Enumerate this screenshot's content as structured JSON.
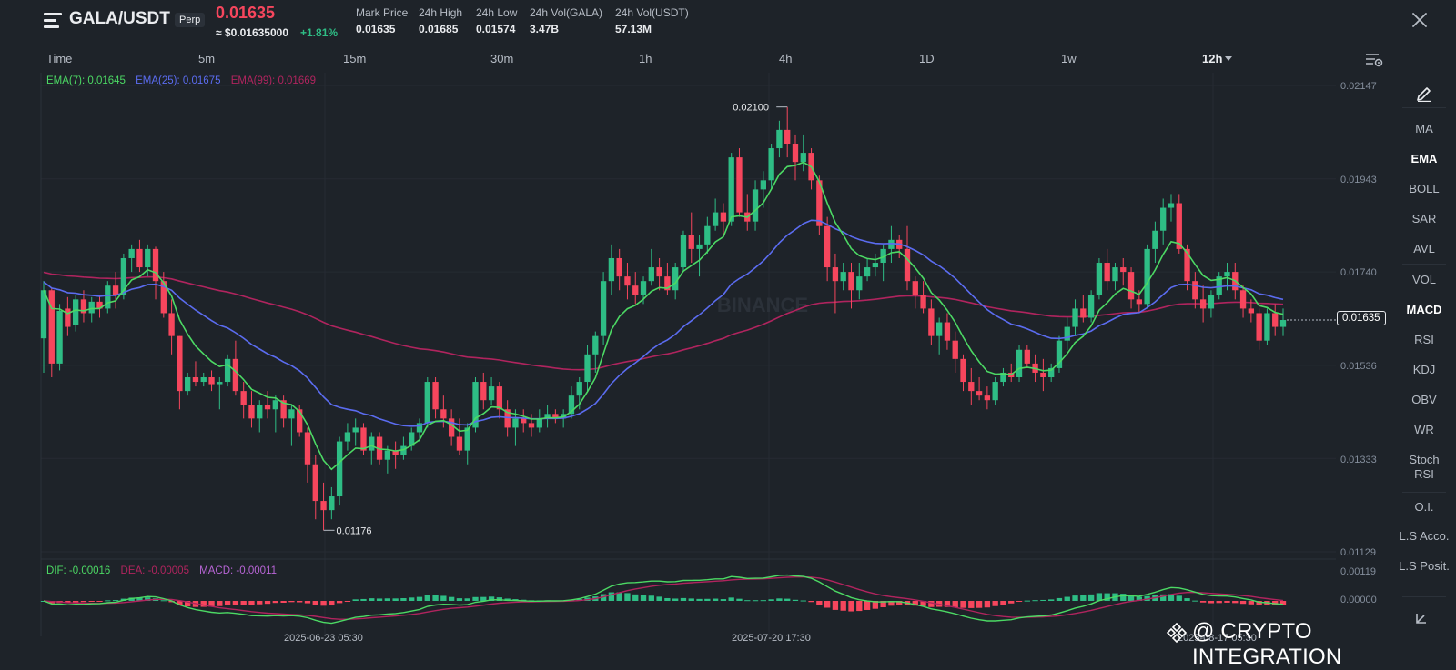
{
  "header": {
    "symbol": "GALA/USDT",
    "contract_type": "Perp",
    "last_price": "0.01635",
    "usd_price": "≈ $0.01635000",
    "change_pct": "+1.81%",
    "stats": [
      {
        "label": "Mark Price",
        "value": "0.01635"
      },
      {
        "label": "24h High",
        "value": "0.01685"
      },
      {
        "label": "24h Low",
        "value": "0.01574"
      },
      {
        "label": "24h Vol(GALA)",
        "value": "3.47B"
      },
      {
        "label": "24h Vol(USDT)",
        "value": "57.13M"
      }
    ]
  },
  "timeframes": [
    "Time",
    "5m",
    "15m",
    "30m",
    "1h",
    "4h",
    "1D",
    "1w",
    "12h"
  ],
  "active_timeframe": "12h",
  "indicators": [
    "MA",
    "EMA",
    "BOLL",
    "SAR",
    "AVL",
    "VOL",
    "MACD",
    "RSI",
    "KDJ",
    "OBV",
    "WR",
    "Stoch",
    "RSI",
    "O.I.",
    "L.S Acco.",
    "L.S Posit."
  ],
  "active_indicators": [
    "EMA",
    "MACD"
  ],
  "ema_legend": {
    "ema7": "EMA(7): 0.01645",
    "ema25": "EMA(25): 0.01675",
    "ema99": "EMA(99): 0.01669"
  },
  "macd_legend": {
    "dif": "DIF: -0.00016",
    "dea": "DEA: -0.00005",
    "macd": "MACD: -0.00011"
  },
  "chart_watermark": "BINANCE",
  "price_axis": [
    "0.02147",
    "0.01943",
    "0.01740",
    "0.01536",
    "0.01333",
    "0.01129"
  ],
  "macd_axis": [
    "0.00119",
    "0.00000"
  ],
  "date_labels": [
    "2025-06-23 05:30",
    "2025-07-20 17:30",
    "2025-08-17 05:30"
  ],
  "current_price_tag": "0.01635",
  "high_marker": "0.02100",
  "low_marker": "0.01176",
  "overlay_watermark": "@ CRYPTO INTEGRATION",
  "colors": {
    "background": "#1e2329",
    "up": "#2ebd85",
    "down": "#f6465d",
    "ema7": "#4cd964",
    "ema25": "#5b6cf0",
    "ema99": "#b0245e",
    "macd_label": "#b865d6"
  },
  "chart_data": {
    "type": "candlestick",
    "interval": "12h",
    "y_axis_ticks": [
      0.02147,
      0.01943,
      0.0174,
      0.01536,
      0.01333,
      0.01129
    ],
    "ylim": [
      0.0109,
      0.0221
    ],
    "x_tick_labels": [
      "2025-06-23 05:30",
      "2025-07-20 17:30",
      "2025-08-17 05:30"
    ],
    "high_marker": 0.021,
    "low_marker": 0.01176,
    "current_price": 0.01635,
    "candles": [
      {
        "o": 0.01595,
        "h": 0.0172,
        "l": 0.0152,
        "c": 0.017
      },
      {
        "o": 0.017,
        "h": 0.01705,
        "l": 0.0151,
        "c": 0.0154
      },
      {
        "o": 0.0154,
        "h": 0.0167,
        "l": 0.01525,
        "c": 0.01655
      },
      {
        "o": 0.0166,
        "h": 0.01685,
        "l": 0.016,
        "c": 0.0162
      },
      {
        "o": 0.01625,
        "h": 0.0169,
        "l": 0.0161,
        "c": 0.0168
      },
      {
        "o": 0.0168,
        "h": 0.017,
        "l": 0.0163,
        "c": 0.0165
      },
      {
        "o": 0.0165,
        "h": 0.01685,
        "l": 0.0163,
        "c": 0.01675
      },
      {
        "o": 0.01675,
        "h": 0.0169,
        "l": 0.0164,
        "c": 0.0166
      },
      {
        "o": 0.0166,
        "h": 0.0172,
        "l": 0.0165,
        "c": 0.0171
      },
      {
        "o": 0.0171,
        "h": 0.0174,
        "l": 0.0166,
        "c": 0.0169
      },
      {
        "o": 0.0169,
        "h": 0.0178,
        "l": 0.0168,
        "c": 0.0177
      },
      {
        "o": 0.0177,
        "h": 0.018,
        "l": 0.0174,
        "c": 0.0179
      },
      {
        "o": 0.0179,
        "h": 0.0181,
        "l": 0.0174,
        "c": 0.0175
      },
      {
        "o": 0.0175,
        "h": 0.018,
        "l": 0.0173,
        "c": 0.0179
      },
      {
        "o": 0.0179,
        "h": 0.01795,
        "l": 0.0168,
        "c": 0.0172
      },
      {
        "o": 0.0172,
        "h": 0.0174,
        "l": 0.0164,
        "c": 0.0165
      },
      {
        "o": 0.0165,
        "h": 0.0168,
        "l": 0.0156,
        "c": 0.016
      },
      {
        "o": 0.016,
        "h": 0.016,
        "l": 0.0144,
        "c": 0.0148
      },
      {
        "o": 0.0148,
        "h": 0.0152,
        "l": 0.0147,
        "c": 0.0151
      },
      {
        "o": 0.0151,
        "h": 0.01545,
        "l": 0.0149,
        "c": 0.015
      },
      {
        "o": 0.015,
        "h": 0.0152,
        "l": 0.0149,
        "c": 0.0151
      },
      {
        "o": 0.0151,
        "h": 0.01525,
        "l": 0.0148,
        "c": 0.01495
      },
      {
        "o": 0.01495,
        "h": 0.0151,
        "l": 0.0144,
        "c": 0.015
      },
      {
        "o": 0.015,
        "h": 0.0156,
        "l": 0.0149,
        "c": 0.0155
      },
      {
        "o": 0.0155,
        "h": 0.0159,
        "l": 0.0147,
        "c": 0.0148
      },
      {
        "o": 0.0148,
        "h": 0.015,
        "l": 0.0142,
        "c": 0.0145
      },
      {
        "o": 0.0145,
        "h": 0.0148,
        "l": 0.014,
        "c": 0.0142
      },
      {
        "o": 0.0142,
        "h": 0.0146,
        "l": 0.0139,
        "c": 0.0145
      },
      {
        "o": 0.0145,
        "h": 0.0148,
        "l": 0.0142,
        "c": 0.0144
      },
      {
        "o": 0.0144,
        "h": 0.0147,
        "l": 0.0139,
        "c": 0.0146
      },
      {
        "o": 0.0146,
        "h": 0.0147,
        "l": 0.014,
        "c": 0.0142
      },
      {
        "o": 0.0142,
        "h": 0.0145,
        "l": 0.0136,
        "c": 0.0144
      },
      {
        "o": 0.0144,
        "h": 0.0145,
        "l": 0.0138,
        "c": 0.0139
      },
      {
        "o": 0.0139,
        "h": 0.014,
        "l": 0.0128,
        "c": 0.0132
      },
      {
        "o": 0.0132,
        "h": 0.0134,
        "l": 0.012,
        "c": 0.0124
      },
      {
        "o": 0.0124,
        "h": 0.0128,
        "l": 0.01176,
        "c": 0.0122
      },
      {
        "o": 0.0122,
        "h": 0.0127,
        "l": 0.012,
        "c": 0.0125
      },
      {
        "o": 0.0125,
        "h": 0.0138,
        "l": 0.0123,
        "c": 0.0137
      },
      {
        "o": 0.0137,
        "h": 0.0141,
        "l": 0.0135,
        "c": 0.0139
      },
      {
        "o": 0.0139,
        "h": 0.0142,
        "l": 0.0136,
        "c": 0.014
      },
      {
        "o": 0.014,
        "h": 0.0141,
        "l": 0.0134,
        "c": 0.0135
      },
      {
        "o": 0.0135,
        "h": 0.0139,
        "l": 0.0132,
        "c": 0.0138
      },
      {
        "o": 0.0138,
        "h": 0.0139,
        "l": 0.0132,
        "c": 0.0133
      },
      {
        "o": 0.0133,
        "h": 0.0136,
        "l": 0.013,
        "c": 0.0135
      },
      {
        "o": 0.0135,
        "h": 0.0137,
        "l": 0.0131,
        "c": 0.0134
      },
      {
        "o": 0.0134,
        "h": 0.0138,
        "l": 0.0133,
        "c": 0.0136
      },
      {
        "o": 0.0136,
        "h": 0.014,
        "l": 0.0135,
        "c": 0.0139
      },
      {
        "o": 0.0139,
        "h": 0.0142,
        "l": 0.0137,
        "c": 0.0141
      },
      {
        "o": 0.0141,
        "h": 0.0151,
        "l": 0.014,
        "c": 0.015
      },
      {
        "o": 0.015,
        "h": 0.0151,
        "l": 0.0142,
        "c": 0.0144
      },
      {
        "o": 0.0144,
        "h": 0.0147,
        "l": 0.014,
        "c": 0.0142
      },
      {
        "o": 0.0142,
        "h": 0.0144,
        "l": 0.0136,
        "c": 0.0138
      },
      {
        "o": 0.0138,
        "h": 0.0142,
        "l": 0.0134,
        "c": 0.0135
      },
      {
        "o": 0.0135,
        "h": 0.0141,
        "l": 0.0132,
        "c": 0.014
      },
      {
        "o": 0.014,
        "h": 0.0151,
        "l": 0.0139,
        "c": 0.015
      },
      {
        "o": 0.015,
        "h": 0.0152,
        "l": 0.0144,
        "c": 0.0146
      },
      {
        "o": 0.0146,
        "h": 0.0151,
        "l": 0.0145,
        "c": 0.0149
      },
      {
        "o": 0.0149,
        "h": 0.015,
        "l": 0.0142,
        "c": 0.0144
      },
      {
        "o": 0.0144,
        "h": 0.0146,
        "l": 0.0138,
        "c": 0.014
      },
      {
        "o": 0.014,
        "h": 0.0144,
        "l": 0.0136,
        "c": 0.0142
      },
      {
        "o": 0.0142,
        "h": 0.0144,
        "l": 0.0139,
        "c": 0.0141
      },
      {
        "o": 0.0141,
        "h": 0.0143,
        "l": 0.0138,
        "c": 0.014
      },
      {
        "o": 0.014,
        "h": 0.0144,
        "l": 0.0139,
        "c": 0.0142
      },
      {
        "o": 0.0142,
        "h": 0.0145,
        "l": 0.014,
        "c": 0.0143
      },
      {
        "o": 0.0143,
        "h": 0.0144,
        "l": 0.0141,
        "c": 0.0142
      },
      {
        "o": 0.0142,
        "h": 0.0144,
        "l": 0.014,
        "c": 0.0143
      },
      {
        "o": 0.0143,
        "h": 0.0149,
        "l": 0.0142,
        "c": 0.0147
      },
      {
        "o": 0.0147,
        "h": 0.0151,
        "l": 0.0144,
        "c": 0.015
      },
      {
        "o": 0.015,
        "h": 0.0158,
        "l": 0.0148,
        "c": 0.0156
      },
      {
        "o": 0.0156,
        "h": 0.0161,
        "l": 0.0152,
        "c": 0.016
      },
      {
        "o": 0.016,
        "h": 0.0174,
        "l": 0.0158,
        "c": 0.0172
      },
      {
        "o": 0.0172,
        "h": 0.018,
        "l": 0.0169,
        "c": 0.0177
      },
      {
        "o": 0.0177,
        "h": 0.0179,
        "l": 0.017,
        "c": 0.0173
      },
      {
        "o": 0.0173,
        "h": 0.0176,
        "l": 0.0168,
        "c": 0.0171
      },
      {
        "o": 0.0171,
        "h": 0.0174,
        "l": 0.0167,
        "c": 0.0169
      },
      {
        "o": 0.0169,
        "h": 0.0173,
        "l": 0.0167,
        "c": 0.0172
      },
      {
        "o": 0.0172,
        "h": 0.0179,
        "l": 0.0171,
        "c": 0.0175
      },
      {
        "o": 0.0175,
        "h": 0.0177,
        "l": 0.017,
        "c": 0.0173
      },
      {
        "o": 0.0173,
        "h": 0.0176,
        "l": 0.0169,
        "c": 0.017
      },
      {
        "o": 0.017,
        "h": 0.0176,
        "l": 0.0168,
        "c": 0.0175
      },
      {
        "o": 0.0175,
        "h": 0.0183,
        "l": 0.0174,
        "c": 0.0182
      },
      {
        "o": 0.0182,
        "h": 0.0187,
        "l": 0.0176,
        "c": 0.0179
      },
      {
        "o": 0.0179,
        "h": 0.0182,
        "l": 0.0173,
        "c": 0.018
      },
      {
        "o": 0.018,
        "h": 0.0186,
        "l": 0.0178,
        "c": 0.0184
      },
      {
        "o": 0.0184,
        "h": 0.019,
        "l": 0.0183,
        "c": 0.0187
      },
      {
        "o": 0.0187,
        "h": 0.0189,
        "l": 0.0182,
        "c": 0.0185
      },
      {
        "o": 0.0185,
        "h": 0.02,
        "l": 0.0184,
        "c": 0.0199
      },
      {
        "o": 0.0199,
        "h": 0.0201,
        "l": 0.0186,
        "c": 0.0187
      },
      {
        "o": 0.0187,
        "h": 0.0191,
        "l": 0.0183,
        "c": 0.0185
      },
      {
        "o": 0.0185,
        "h": 0.0194,
        "l": 0.0183,
        "c": 0.0192
      },
      {
        "o": 0.0192,
        "h": 0.0196,
        "l": 0.0188,
        "c": 0.0194
      },
      {
        "o": 0.0194,
        "h": 0.0202,
        "l": 0.0192,
        "c": 0.0201
      },
      {
        "o": 0.0201,
        "h": 0.0207,
        "l": 0.0199,
        "c": 0.0205
      },
      {
        "o": 0.0205,
        "h": 0.021,
        "l": 0.0199,
        "c": 0.0202
      },
      {
        "o": 0.0202,
        "h": 0.0204,
        "l": 0.0194,
        "c": 0.0198
      },
      {
        "o": 0.0198,
        "h": 0.0204,
        "l": 0.0196,
        "c": 0.02
      },
      {
        "o": 0.02,
        "h": 0.0201,
        "l": 0.0192,
        "c": 0.0194
      },
      {
        "o": 0.0194,
        "h": 0.0195,
        "l": 0.0182,
        "c": 0.0184
      },
      {
        "o": 0.0184,
        "h": 0.0186,
        "l": 0.0172,
        "c": 0.0175
      },
      {
        "o": 0.0175,
        "h": 0.0178,
        "l": 0.0165,
        "c": 0.0172
      },
      {
        "o": 0.0172,
        "h": 0.0176,
        "l": 0.017,
        "c": 0.0174
      },
      {
        "o": 0.0174,
        "h": 0.0176,
        "l": 0.0166,
        "c": 0.017
      },
      {
        "o": 0.017,
        "h": 0.0176,
        "l": 0.0168,
        "c": 0.0173
      },
      {
        "o": 0.0173,
        "h": 0.0177,
        "l": 0.0172,
        "c": 0.0175
      },
      {
        "o": 0.0175,
        "h": 0.0178,
        "l": 0.0173,
        "c": 0.0176
      },
      {
        "o": 0.0176,
        "h": 0.018,
        "l": 0.0172,
        "c": 0.0179
      },
      {
        "o": 0.0179,
        "h": 0.0184,
        "l": 0.0176,
        "c": 0.0181
      },
      {
        "o": 0.0181,
        "h": 0.0182,
        "l": 0.0177,
        "c": 0.0179
      },
      {
        "o": 0.0179,
        "h": 0.0184,
        "l": 0.017,
        "c": 0.0172
      },
      {
        "o": 0.0172,
        "h": 0.0173,
        "l": 0.0166,
        "c": 0.0169
      },
      {
        "o": 0.0169,
        "h": 0.0172,
        "l": 0.0165,
        "c": 0.0166
      },
      {
        "o": 0.0166,
        "h": 0.0168,
        "l": 0.0158,
        "c": 0.016
      },
      {
        "o": 0.016,
        "h": 0.0164,
        "l": 0.0156,
        "c": 0.0163
      },
      {
        "o": 0.0163,
        "h": 0.0165,
        "l": 0.0157,
        "c": 0.0159
      },
      {
        "o": 0.0159,
        "h": 0.0161,
        "l": 0.0152,
        "c": 0.0155
      },
      {
        "o": 0.0155,
        "h": 0.0156,
        "l": 0.0148,
        "c": 0.015
      },
      {
        "o": 0.015,
        "h": 0.0153,
        "l": 0.0145,
        "c": 0.0148
      },
      {
        "o": 0.0148,
        "h": 0.0151,
        "l": 0.0146,
        "c": 0.0147
      },
      {
        "o": 0.0147,
        "h": 0.0149,
        "l": 0.0144,
        "c": 0.0146
      },
      {
        "o": 0.0146,
        "h": 0.0151,
        "l": 0.0145,
        "c": 0.015
      },
      {
        "o": 0.015,
        "h": 0.0153,
        "l": 0.0149,
        "c": 0.0152
      },
      {
        "o": 0.0152,
        "h": 0.0154,
        "l": 0.015,
        "c": 0.0151
      },
      {
        "o": 0.0151,
        "h": 0.0158,
        "l": 0.015,
        "c": 0.0157
      },
      {
        "o": 0.0157,
        "h": 0.0158,
        "l": 0.0153,
        "c": 0.0154
      },
      {
        "o": 0.0154,
        "h": 0.0156,
        "l": 0.015,
        "c": 0.0152
      },
      {
        "o": 0.0152,
        "h": 0.0155,
        "l": 0.0148,
        "c": 0.0151
      },
      {
        "o": 0.0151,
        "h": 0.0154,
        "l": 0.015,
        "c": 0.0153
      },
      {
        "o": 0.0153,
        "h": 0.016,
        "l": 0.0152,
        "c": 0.0159
      },
      {
        "o": 0.0159,
        "h": 0.0164,
        "l": 0.0157,
        "c": 0.0162
      },
      {
        "o": 0.0162,
        "h": 0.0168,
        "l": 0.016,
        "c": 0.0166
      },
      {
        "o": 0.0166,
        "h": 0.0169,
        "l": 0.0163,
        "c": 0.0164
      },
      {
        "o": 0.0164,
        "h": 0.017,
        "l": 0.0163,
        "c": 0.0169
      },
      {
        "o": 0.0169,
        "h": 0.0177,
        "l": 0.0168,
        "c": 0.0176
      },
      {
        "o": 0.0176,
        "h": 0.0179,
        "l": 0.017,
        "c": 0.0172
      },
      {
        "o": 0.0172,
        "h": 0.0176,
        "l": 0.017,
        "c": 0.0175
      },
      {
        "o": 0.0175,
        "h": 0.0177,
        "l": 0.0171,
        "c": 0.0174
      },
      {
        "o": 0.0174,
        "h": 0.0175,
        "l": 0.0166,
        "c": 0.0168
      },
      {
        "o": 0.0168,
        "h": 0.017,
        "l": 0.0165,
        "c": 0.0167
      },
      {
        "o": 0.0167,
        "h": 0.018,
        "l": 0.0166,
        "c": 0.0179
      },
      {
        "o": 0.0179,
        "h": 0.0185,
        "l": 0.0176,
        "c": 0.0183
      },
      {
        "o": 0.0183,
        "h": 0.019,
        "l": 0.018,
        "c": 0.0188
      },
      {
        "o": 0.0188,
        "h": 0.0191,
        "l": 0.0185,
        "c": 0.0189
      },
      {
        "o": 0.0189,
        "h": 0.0191,
        "l": 0.0178,
        "c": 0.0179
      },
      {
        "o": 0.0179,
        "h": 0.018,
        "l": 0.017,
        "c": 0.0172
      },
      {
        "o": 0.0172,
        "h": 0.0174,
        "l": 0.0166,
        "c": 0.0168
      },
      {
        "o": 0.0168,
        "h": 0.0171,
        "l": 0.0163,
        "c": 0.0166
      },
      {
        "o": 0.0166,
        "h": 0.017,
        "l": 0.0164,
        "c": 0.0169
      },
      {
        "o": 0.0169,
        "h": 0.0174,
        "l": 0.0168,
        "c": 0.0173
      },
      {
        "o": 0.0173,
        "h": 0.0176,
        "l": 0.017,
        "c": 0.0174
      },
      {
        "o": 0.0174,
        "h": 0.0176,
        "l": 0.0168,
        "c": 0.017
      },
      {
        "o": 0.017,
        "h": 0.0171,
        "l": 0.0164,
        "c": 0.0166
      },
      {
        "o": 0.0166,
        "h": 0.0168,
        "l": 0.0163,
        "c": 0.0165
      },
      {
        "o": 0.0165,
        "h": 0.0166,
        "l": 0.0157,
        "c": 0.0159
      },
      {
        "o": 0.0159,
        "h": 0.0166,
        "l": 0.0158,
        "c": 0.0165
      },
      {
        "o": 0.0165,
        "h": 0.0167,
        "l": 0.016,
        "c": 0.0162
      },
      {
        "o": 0.0162,
        "h": 0.0166,
        "l": 0.016,
        "c": 0.01635
      }
    ]
  }
}
